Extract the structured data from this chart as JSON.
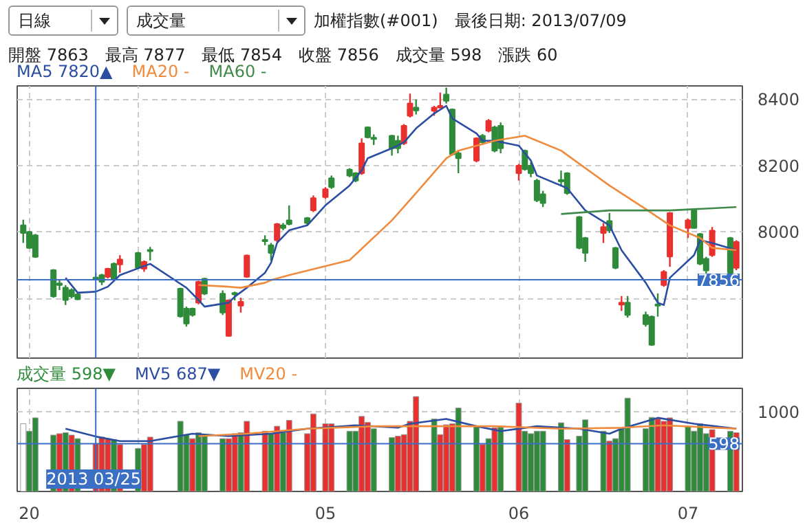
{
  "chart_data": [
    {
      "type": "candlestick",
      "title": "加權指數(#001)　最後日期: 2013/07/09",
      "subtitle": "開盤 7863　最高 7877　最低 7854　收盤 7856　成交量 598　漲跌 60",
      "annotations": [
        "日線",
        "成交量"
      ],
      "x": [
        "2013-03-13",
        "2013-03-14",
        "2013-03-15",
        "2013-03-18",
        "2013-03-19",
        "2013-03-20",
        "2013-03-21",
        "2013-03-22",
        "2013-03-25",
        "2013-03-26",
        "2013-03-27",
        "2013-03-28",
        "2013-03-29",
        "2013-04-01",
        "2013-04-02",
        "2013-04-03",
        "2013-04-08",
        "2013-04-09",
        "2013-04-10",
        "2013-04-11",
        "2013-04-12",
        "2013-04-15",
        "2013-04-16",
        "2013-04-17",
        "2013-04-18",
        "2013-04-19",
        "2013-04-22",
        "2013-04-23",
        "2013-04-24",
        "2013-04-25",
        "2013-04-26",
        "2013-04-29",
        "2013-04-30",
        "2013-05-02",
        "2013-05-03",
        "2013-05-06",
        "2013-05-07",
        "2013-05-08",
        "2013-05-09",
        "2013-05-10",
        "2013-05-13",
        "2013-05-14",
        "2013-05-15",
        "2013-05-16",
        "2013-05-17",
        "2013-05-20",
        "2013-05-21",
        "2013-05-22",
        "2013-05-23",
        "2013-05-24",
        "2013-05-27",
        "2013-05-28",
        "2013-05-29",
        "2013-05-30",
        "2013-05-31",
        "2013-06-03",
        "2013-06-04",
        "2013-06-05",
        "2013-06-06",
        "2013-06-07",
        "2013-06-10",
        "2013-06-11",
        "2013-06-13",
        "2013-06-14",
        "2013-06-17",
        "2013-06-18",
        "2013-06-19",
        "2013-06-20",
        "2013-06-21",
        "2013-06-24",
        "2013-06-25",
        "2013-06-26",
        "2013-06-27",
        "2013-06-28",
        "2013-07-01",
        "2013-07-02",
        "2013-07-03",
        "2013-07-04",
        "2013-07-05",
        "2013-07-08",
        "2013-07-09"
      ],
      "ohlc": [
        [
          8020,
          8037,
          7967,
          7997
        ],
        [
          8000,
          8003,
          7950,
          7952
        ],
        [
          7990,
          7994,
          7922,
          7925
        ],
        [
          7885,
          7888,
          7802,
          7806
        ],
        [
          7845,
          7855,
          7825,
          7840
        ],
        [
          7832,
          7840,
          7780,
          7795
        ],
        [
          7825,
          7830,
          7800,
          7806
        ],
        [
          7812,
          7815,
          7795,
          7797
        ],
        [
          7863,
          7877,
          7854,
          7856
        ],
        [
          7870,
          7874,
          7840,
          7850
        ],
        [
          7865,
          7892,
          7860,
          7889
        ],
        [
          7904,
          7908,
          7855,
          7859
        ],
        [
          7902,
          7930,
          7877,
          7917
        ],
        [
          7937,
          7940,
          7890,
          7892
        ],
        [
          7889,
          7914,
          7880,
          7910
        ],
        [
          7946,
          7955,
          7914,
          7942
        ],
        [
          7829,
          7832,
          7742,
          7746
        ],
        [
          7769,
          7775,
          7715,
          7724
        ],
        [
          7769,
          7772,
          7745,
          7750
        ],
        [
          7787,
          7853,
          7782,
          7850
        ],
        [
          7859,
          7862,
          7810,
          7814
        ],
        [
          7814,
          7824,
          7750,
          7757
        ],
        [
          7687,
          7797,
          7685,
          7794
        ],
        [
          7816,
          7820,
          7794,
          7812
        ],
        [
          7778,
          7802,
          7757,
          7790
        ],
        [
          7865,
          7932,
          7862,
          7929
        ],
        [
          7976,
          7990,
          7960,
          7972
        ],
        [
          7960,
          7967,
          7914,
          7937
        ],
        [
          7975,
          8027,
          7970,
          8024
        ],
        [
          8020,
          8027,
          8005,
          8012
        ],
        [
          8035,
          8080,
          8020,
          8024
        ],
        [
          8042,
          8045,
          8020,
          8027
        ],
        [
          8065,
          8110,
          8060,
          8102
        ],
        [
          8105,
          8135,
          8100,
          8129
        ],
        [
          8162,
          8170,
          8130,
          8135
        ],
        [
          8188,
          8192,
          8165,
          8170
        ],
        [
          8177,
          8180,
          8150,
          8155
        ],
        [
          8177,
          8282,
          8172,
          8267
        ],
        [
          8315,
          8318,
          8282,
          8285
        ],
        [
          8284,
          8294,
          8262,
          8280
        ],
        [
          8290,
          8292,
          8230,
          8252
        ],
        [
          8275,
          8290,
          8237,
          8252
        ],
        [
          8267,
          8325,
          8262,
          8320
        ],
        [
          8350,
          8417,
          8345,
          8387
        ],
        [
          8375,
          8399,
          8354,
          8366
        ],
        [
          8365,
          8380,
          8350,
          8375
        ],
        [
          8375,
          8420,
          8372,
          8380
        ],
        [
          8414,
          8435,
          8387,
          8395
        ],
        [
          8369,
          8372,
          8230,
          8234
        ],
        [
          8237,
          8245,
          8177,
          8222
        ],
        [
          8215,
          8285,
          8210,
          8282
        ],
        [
          8290,
          8295,
          8262,
          8270
        ],
        [
          8305,
          8340,
          8300,
          8335
        ],
        [
          8315,
          8320,
          8240,
          8245
        ],
        [
          8320,
          8330,
          8237,
          8252
        ],
        [
          8177,
          8205,
          8155,
          8200
        ],
        [
          8245,
          8248,
          8185,
          8189
        ],
        [
          8200,
          8210,
          8165,
          8177
        ],
        [
          8155,
          8160,
          8090,
          8095
        ],
        [
          8114,
          8124,
          8075,
          8087
        ],
        [
          8157,
          8185,
          8140,
          8152
        ],
        [
          8177,
          8180,
          8112,
          8117
        ],
        [
          8045,
          8048,
          7948,
          7952
        ],
        [
          7982,
          7985,
          7910,
          7937
        ],
        [
          7997,
          8027,
          7967,
          8015
        ],
        [
          8033,
          8057,
          7997,
          8005
        ],
        [
          7952,
          7955,
          7888,
          7892
        ],
        [
          7781,
          7807,
          7762,
          7787
        ],
        [
          7787,
          7807,
          7742,
          7750
        ],
        [
          7750,
          7760,
          7715,
          7722
        ],
        [
          7745,
          7748,
          7657,
          7660
        ],
        [
          7782,
          7815,
          7745,
          7778
        ],
        [
          7840,
          7885,
          7835,
          7880
        ],
        [
          7926,
          8060,
          7895,
          8057
        ],
        [
          8012,
          8040,
          7982,
          8035
        ],
        [
          8065,
          8068,
          8010,
          8012
        ],
        [
          7994,
          7997,
          7900,
          7904
        ],
        [
          7919,
          7925,
          7875,
          7884
        ],
        [
          7930,
          8015,
          7925,
          8004
        ],
        [
          7982,
          7985,
          7875,
          7877
        ],
        [
          7892,
          7975,
          7885,
          7970
        ]
      ],
      "series": [
        {
          "name": "MA5 7820▲",
          "type": "line",
          "color": "#2b4ea2",
          "x": [
            "2013-03-20",
            "2013-03-22",
            "2013-03-25",
            "2013-03-27",
            "2013-03-29",
            "2013-04-03",
            "2013-04-09",
            "2013-04-11",
            "2013-04-12",
            "2013-04-16",
            "2013-04-17",
            "2013-04-19",
            "2013-04-22",
            "2013-04-23",
            "2013-04-24",
            "2013-04-26",
            "2013-04-29",
            "2013-05-02",
            "2013-05-06",
            "2013-05-08",
            "2013-05-09",
            "2013-05-13",
            "2013-05-15",
            "2013-05-17",
            "2013-05-20",
            "2013-05-22",
            "2013-05-23",
            "2013-05-27",
            "2013-05-28",
            "2013-05-30",
            "2013-06-03",
            "2013-06-05",
            "2013-06-06",
            "2013-06-11",
            "2013-06-14",
            "2013-06-18",
            "2013-06-20",
            "2013-06-24",
            "2013-06-26",
            "2013-06-27",
            "2013-06-28",
            "2013-07-02",
            "2013-07-03",
            "2013-07-05",
            "2013-07-09"
          ],
          "values": [
            7862,
            7817,
            7820,
            7835,
            7870,
            7904,
            7832,
            7795,
            7775,
            7787,
            7805,
            7832,
            7877,
            7907,
            7967,
            8005,
            8020,
            8080,
            8140,
            8185,
            8222,
            8252,
            8270,
            8312,
            8357,
            8380,
            8342,
            8297,
            8275,
            8275,
            8260,
            8215,
            8170,
            8132,
            8065,
            8020,
            7945,
            7847,
            7787,
            7780,
            7862,
            7930,
            7975,
            7967,
            7945
          ]
        },
        {
          "name": "MA20 -",
          "type": "line",
          "color": "#f08a3c",
          "x": [
            "2013-04-11",
            "2013-04-16",
            "2013-04-18",
            "2013-04-22",
            "2013-04-23",
            "2013-04-26",
            "2013-05-06",
            "2013-05-13",
            "2013-05-17",
            "2013-05-22",
            "2013-05-24",
            "2013-05-30",
            "2013-06-04",
            "2013-06-10",
            "2013-06-18",
            "2013-06-24",
            "2013-06-28",
            "2013-07-03",
            "2013-07-05",
            "2013-07-09"
          ],
          "values": [
            7840,
            7835,
            7832,
            7847,
            7855,
            7870,
            7915,
            8035,
            8117,
            8222,
            8245,
            8275,
            8290,
            8245,
            8140,
            8069,
            8020,
            7982,
            7952,
            7945
          ]
        },
        {
          "name": "MA60 -",
          "type": "line",
          "color": "#3f8a4a",
          "x": [
            "2013-06-10",
            "2013-06-18",
            "2013-06-28",
            "2013-07-09"
          ],
          "values": [
            8054,
            8065,
            8065,
            8075
          ]
        }
      ],
      "ylim": [
        7620,
        8440
      ],
      "yticks": [
        {
          "value": 7800,
          "label": null
        },
        8000,
        8200,
        8400
      ],
      "xticks": [
        {
          "value": "2013-03-14",
          "label": null
        },
        {
          "value": "2013-04-01",
          "label": null
        },
        {
          "value": "2013-05-02",
          "label": null
        },
        {
          "value": "2013-06-03",
          "label": null
        },
        {
          "value": "2013-07-01",
          "label": null
        }
      ],
      "xlim": [
        "2013-03-12",
        "2013-07-10"
      ],
      "tick_labels": "y",
      "grid": true,
      "legend": "top",
      "ref_lines": [
        {
          "axis": "x",
          "value": "2013-03-25",
          "color": "#3a6fc4"
        },
        {
          "axis": "y",
          "value": 7856,
          "label": "7856",
          "color": "#3a6fc4"
        }
      ]
    },
    {
      "type": "bar",
      "x": [
        "2013-03-13",
        "2013-03-14",
        "2013-03-15",
        "2013-03-18",
        "2013-03-19",
        "2013-03-20",
        "2013-03-21",
        "2013-03-22",
        "2013-03-25",
        "2013-03-26",
        "2013-03-27",
        "2013-03-28",
        "2013-03-29",
        "2013-04-01",
        "2013-04-02",
        "2013-04-03",
        "2013-04-08",
        "2013-04-09",
        "2013-04-10",
        "2013-04-11",
        "2013-04-12",
        "2013-04-15",
        "2013-04-16",
        "2013-04-17",
        "2013-04-18",
        "2013-04-19",
        "2013-04-22",
        "2013-04-23",
        "2013-04-24",
        "2013-04-25",
        "2013-04-26",
        "2013-04-29",
        "2013-04-30",
        "2013-05-02",
        "2013-05-03",
        "2013-05-06",
        "2013-05-07",
        "2013-05-08",
        "2013-05-09",
        "2013-05-10",
        "2013-05-13",
        "2013-05-14",
        "2013-05-15",
        "2013-05-16",
        "2013-05-17",
        "2013-05-20",
        "2013-05-21",
        "2013-05-22",
        "2013-05-23",
        "2013-05-24",
        "2013-05-27",
        "2013-05-28",
        "2013-05-29",
        "2013-05-30",
        "2013-05-31",
        "2013-06-03",
        "2013-06-04",
        "2013-06-05",
        "2013-06-06",
        "2013-06-07",
        "2013-06-10",
        "2013-06-11",
        "2013-06-13",
        "2013-06-14",
        "2013-06-17",
        "2013-06-18",
        "2013-06-19",
        "2013-06-20",
        "2013-06-21",
        "2013-06-24",
        "2013-06-25",
        "2013-06-26",
        "2013-06-27",
        "2013-06-28",
        "2013-07-01",
        "2013-07-02",
        "2013-07-03",
        "2013-07-04",
        "2013-07-05",
        "2013-07-08",
        "2013-07-09"
      ],
      "series": [
        {
          "name": "成交量 598▼",
          "type": "bar",
          "color": "#2e8b3a",
          "values": [
            847,
            754,
            921,
            705,
            723,
            735,
            705,
            661,
            598,
            680,
            661,
            649,
            587,
            538,
            587,
            680,
            878,
            711,
            661,
            735,
            692,
            661,
            661,
            723,
            735,
            878,
            754,
            723,
            816,
            735,
            890,
            723,
            970,
            847,
            847,
            754,
            754,
            939,
            865,
            785,
            674,
            692,
            711,
            878,
            1187,
            908,
            711,
            834,
            847,
            1044,
            816,
            587,
            661,
            797,
            803,
            1106,
            754,
            723,
            754,
            754,
            859,
            649,
            692,
            896,
            754,
            630,
            661,
            797,
            1168,
            785,
            927,
            908,
            878,
            921,
            816,
            754,
            847,
            723,
            773,
            754,
            735
          ],
          "colors": [
            "#ffffff",
            "#2e8b3a",
            "#2e8b3a",
            "#2e8b3a",
            "#e8312f",
            "#2e8b3a",
            "#e8312f",
            "#2e8b3a",
            "#e8312f",
            "#e8312f",
            "#e8312f",
            "#2e8b3a",
            "#e8312f",
            "#2e8b3a",
            "#e8312f",
            "#e8312f",
            "#2e8b3a",
            "#2e8b3a",
            "#e8312f",
            "#2e8b3a",
            "#2e8b3a",
            "#2e8b3a",
            "#e8312f",
            "#e8312f",
            "#2e8b3a",
            "#e8312f",
            "#e8312f",
            "#2e8b3a",
            "#e8312f",
            "#2e8b3a",
            "#e8312f",
            "#e8312f",
            "#e8312f",
            "#e8312f",
            "#e8312f",
            "#2e8b3a",
            "#2e8b3a",
            "#e8312f",
            "#e8312f",
            "#2e8b3a",
            "#2e8b3a",
            "#e8312f",
            "#e8312f",
            "#e8312f",
            "#e8312f",
            "#2e8b3a",
            "#e8312f",
            "#e8312f",
            "#e8312f",
            "#2e8b3a",
            "#2e8b3a",
            "#e8312f",
            "#2e8b3a",
            "#e8312f",
            "#2e8b3a",
            "#e8312f",
            "#2e8b3a",
            "#2e8b3a",
            "#2e8b3a",
            "#2e8b3a",
            "#2e8b3a",
            "#e8312f",
            "#2e8b3a",
            "#2e8b3a",
            "#2e8b3a",
            "#e8312f",
            "#2e8b3a",
            "#2e8b3a",
            "#2e8b3a",
            "#2e8b3a",
            "#2e8b3a",
            "#e8312f",
            "#e8312f",
            "#e8312f",
            "#2e8b3a",
            "#2e8b3a",
            "#2e8b3a",
            "#2e8b3a",
            "#e8312f",
            "#2e8b3a",
            "#e8312f"
          ]
        },
        {
          "name": "MV5 687▼",
          "type": "line",
          "color": "#2b4ea2",
          "x": [
            "2013-03-20",
            "2013-03-25",
            "2013-03-29",
            "2013-04-03",
            "2013-04-10",
            "2013-04-16",
            "2013-04-23",
            "2013-04-29",
            "2013-05-07",
            "2013-05-14",
            "2013-05-16",
            "2013-05-22",
            "2013-05-27",
            "2013-05-31",
            "2013-06-06",
            "2013-06-13",
            "2013-06-18",
            "2013-06-20",
            "2013-06-26",
            "2013-07-02",
            "2013-07-09"
          ],
          "values": [
            785,
            687,
            630,
            630,
            723,
            692,
            723,
            785,
            828,
            797,
            847,
            908,
            816,
            754,
            816,
            785,
            723,
            785,
            921,
            847,
            785
          ]
        },
        {
          "name": "MV20 -",
          "type": "line",
          "color": "#f08a3c",
          "x": [
            "2013-04-11",
            "2013-04-19",
            "2013-04-29",
            "2013-05-10",
            "2013-05-20",
            "2013-05-30",
            "2013-06-10",
            "2013-06-20",
            "2013-06-27",
            "2013-07-09"
          ],
          "values": [
            692,
            723,
            785,
            816,
            816,
            816,
            785,
            797,
            828,
            785
          ]
        }
      ],
      "ylim": [
        0,
        1290
      ],
      "yticks": [
        1000
      ],
      "xlim": [
        "2013-03-12",
        "2013-07-10"
      ],
      "xticks": [
        {
          "value": "2013-03-14",
          "label": "20"
        },
        {
          "value": "2013-04-01",
          "label": null
        },
        {
          "value": "2013-05-02",
          "label": "05"
        },
        {
          "value": "2013-06-03",
          "label": "06"
        },
        {
          "value": "2013-07-01",
          "label": "07"
        }
      ],
      "grid": true,
      "legend": "top",
      "ref_lines": [
        {
          "axis": "x",
          "value": "2013-03-25",
          "label": "2013 03/25",
          "color": "#3a6fc4"
        },
        {
          "axis": "y",
          "value": 598,
          "label": "598",
          "color": "#3a6fc4"
        }
      ]
    }
  ]
}
